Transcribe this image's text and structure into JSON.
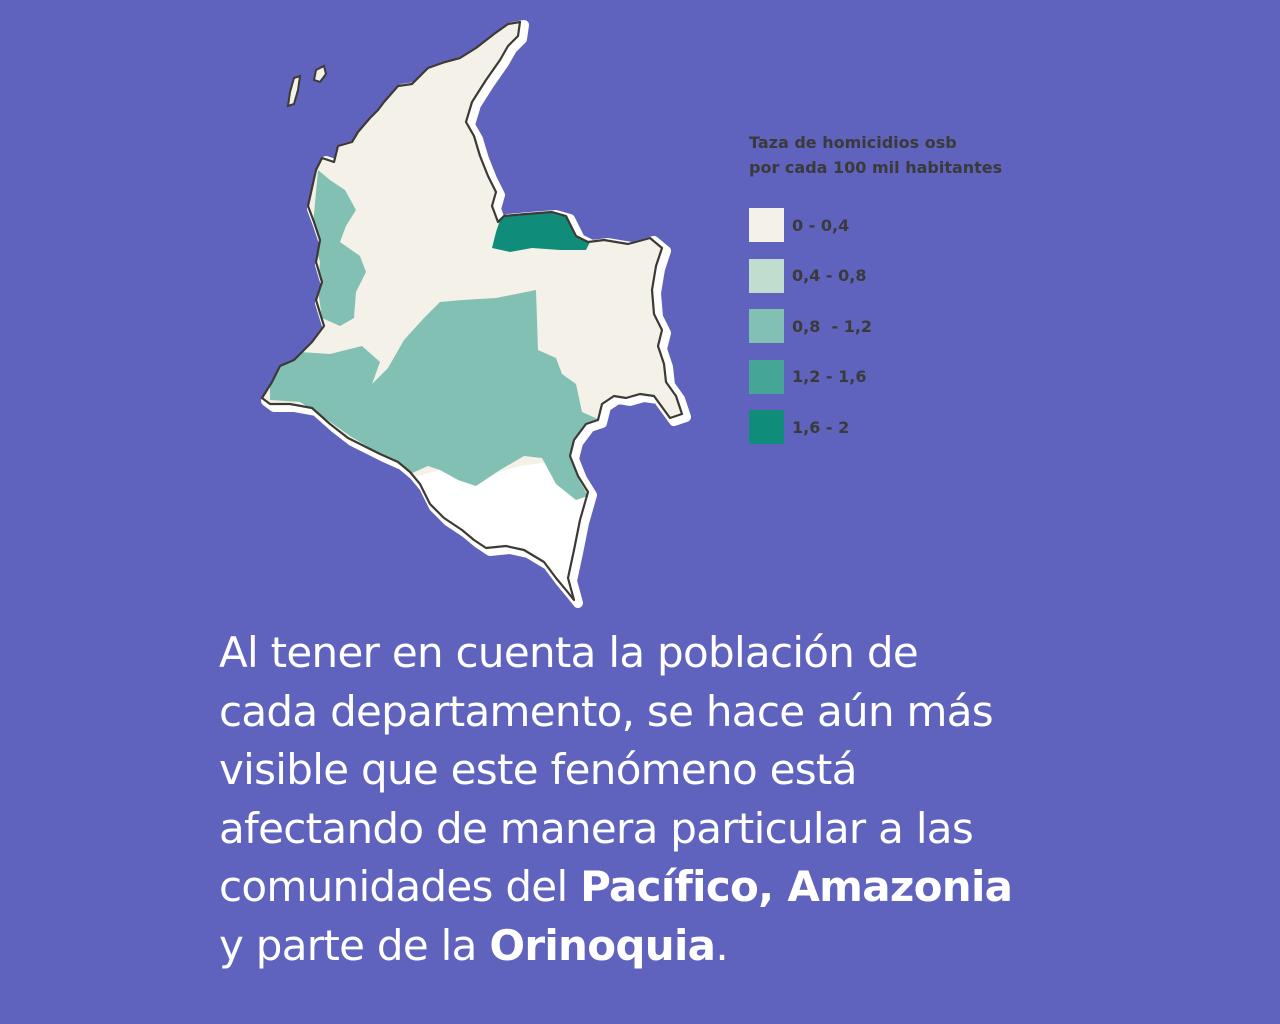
{
  "map": {
    "legend": {
      "title_line1": "Taza de homicidios osb",
      "title_line2": "por cada 100 mil habitantes",
      "items": [
        {
          "label": "0 - 0,4",
          "color": "#f4f2e8"
        },
        {
          "label": "0,4 - 0,8",
          "color": "#c0ddd0"
        },
        {
          "label": "0,8  - 1,2",
          "color": "#82c0b4"
        },
        {
          "label": "1,2 - 1,6",
          "color": "#45a698"
        },
        {
          "label": "1,6 - 2",
          "color": "#0f8c7a"
        }
      ]
    },
    "colors": {
      "background": "#5f63be",
      "outline": "#3d3a36",
      "amazon_white": "#ffffff"
    },
    "regions": {
      "base": "0 - 0,4",
      "pacifico": "0,8  - 1,2",
      "centro_sur": "0,8  - 1,2",
      "amazonia": "0 - 0,4",
      "norte_santander": "1,6 - 2"
    }
  },
  "caption": {
    "line1": "Al tener en cuenta la población de",
    "line2": "cada departamento, se hace aún más",
    "line3": "visible que este fenómeno está",
    "line4": "afectando de manera particular a las",
    "line5_pre": "comunidades del ",
    "line5_bold": "Pacífico, Amazonia",
    "line6_pre": "y parte de la ",
    "line6_bold": "Orinoquia",
    "line6_post": "."
  }
}
